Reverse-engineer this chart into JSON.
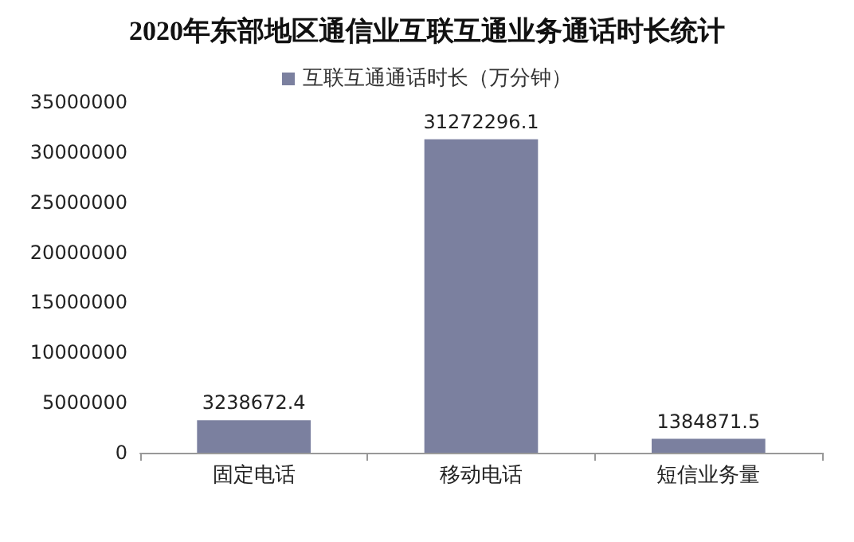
{
  "chart_data": {
    "type": "bar",
    "title": "2020年东部地区通信业互联互通业务通话时长统计",
    "categories": [
      "固定电话",
      "移动电话",
      "短信业务量"
    ],
    "series": [
      {
        "name": "互联互通通话时长（万分钟）",
        "color": "#7b809f",
        "values": [
          3238672.4,
          31272296.1,
          1384871.5
        ]
      }
    ],
    "ylim": [
      0,
      35000000
    ],
    "yticks": [
      0,
      5000000,
      10000000,
      15000000,
      20000000,
      25000000,
      30000000,
      35000000
    ],
    "grid": false,
    "legend": "top",
    "data_labels": true
  }
}
